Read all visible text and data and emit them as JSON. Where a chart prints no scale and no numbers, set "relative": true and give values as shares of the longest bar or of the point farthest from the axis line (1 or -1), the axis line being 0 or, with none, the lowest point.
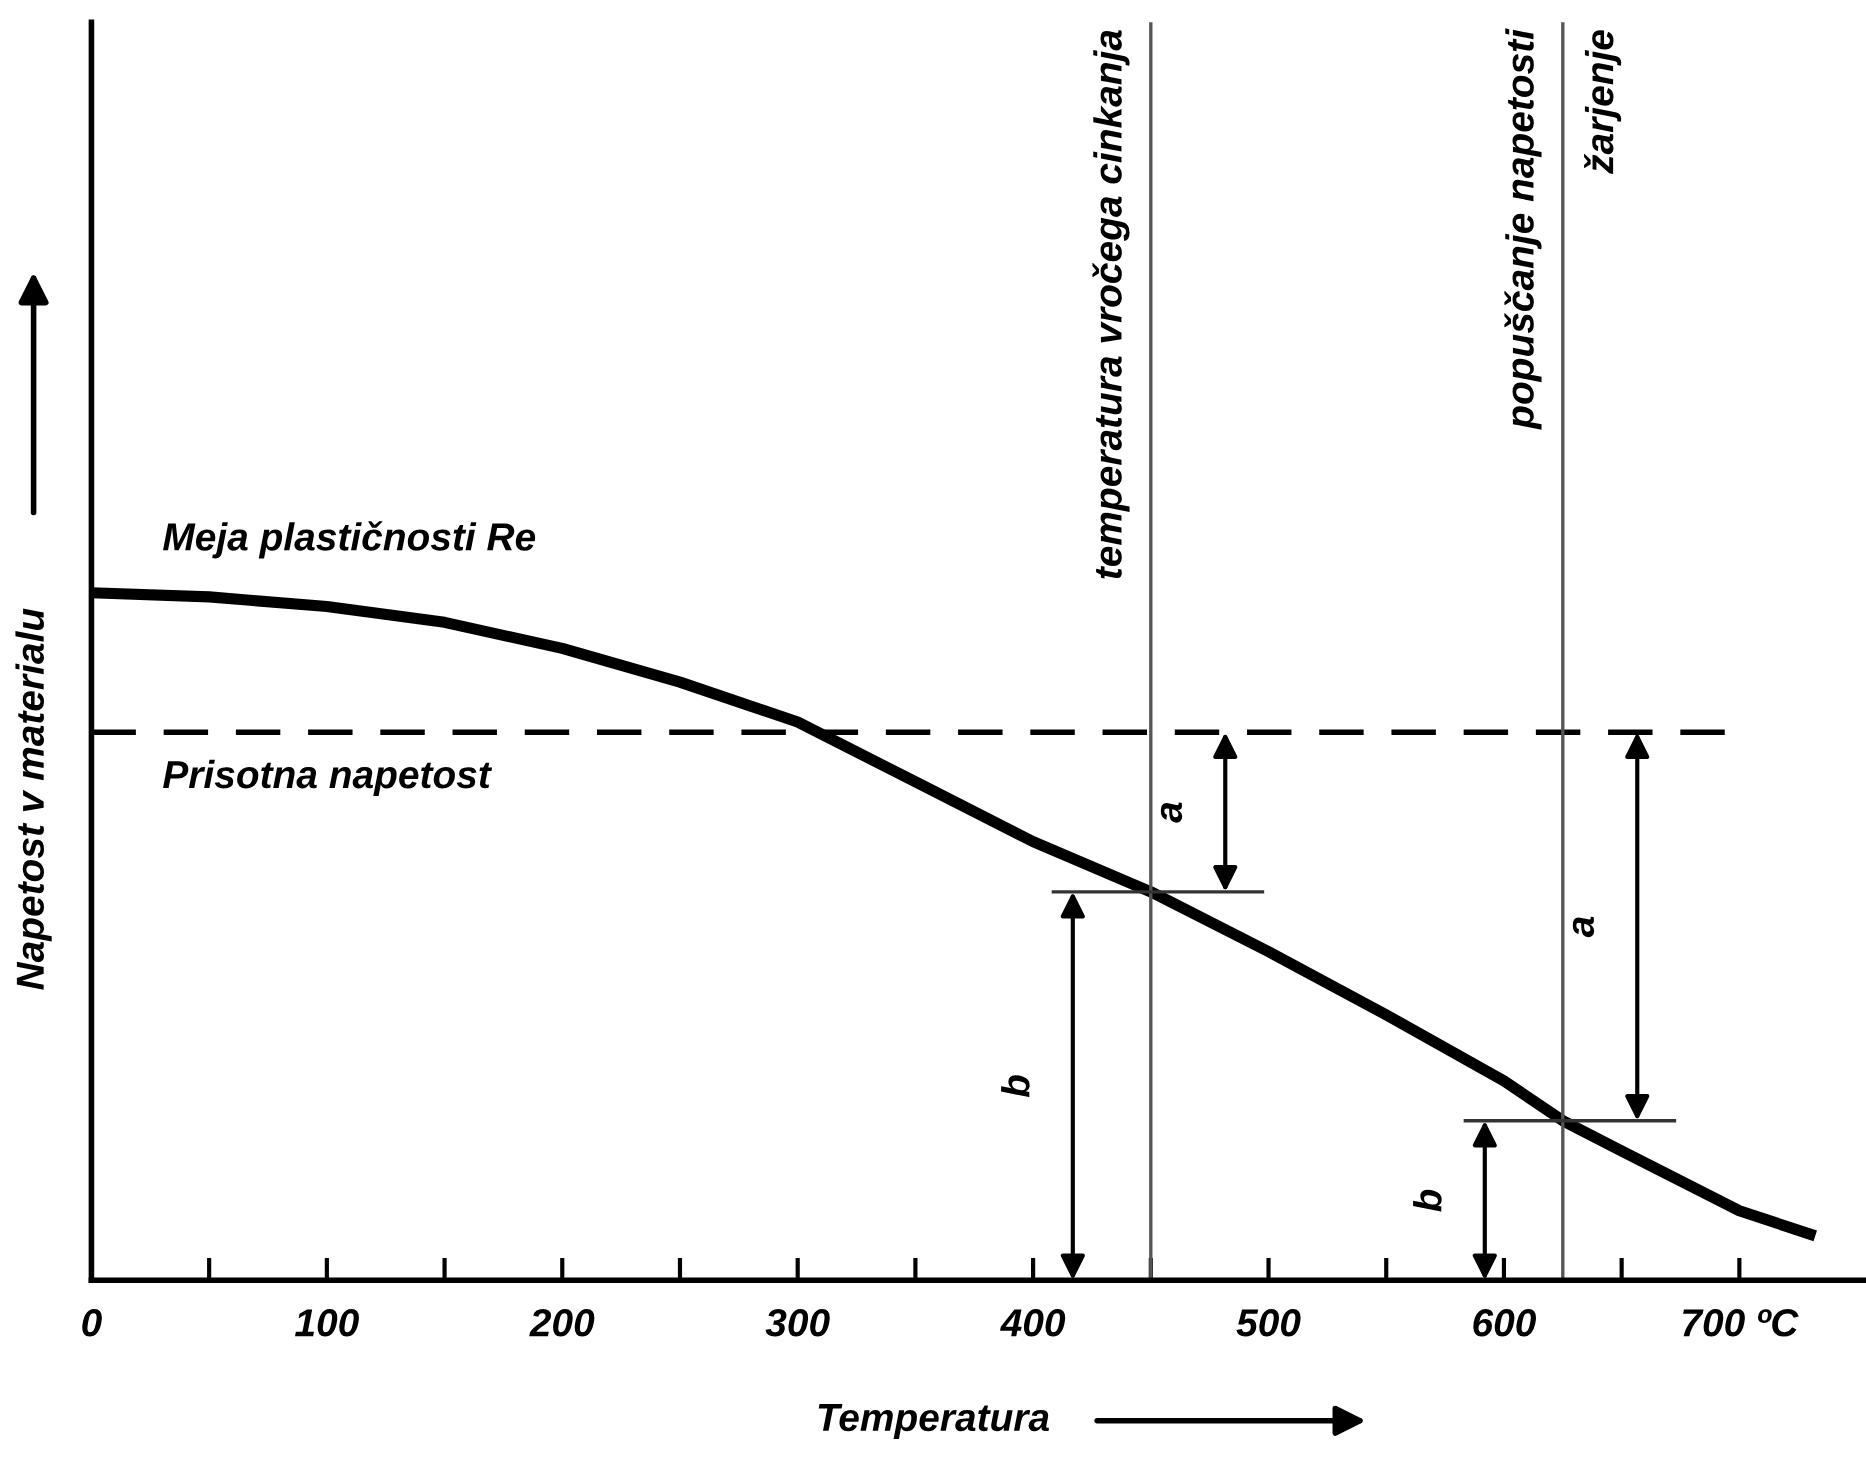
{
  "chart_data": {
    "type": "line",
    "relative": true,
    "tick_labels": "x",
    "xlabel": "Temperatura",
    "ylabel": "Napetost v materialu",
    "x": [
      0,
      50,
      100,
      150,
      200,
      250,
      300,
      350,
      400,
      450,
      500,
      550,
      600,
      625,
      650,
      700,
      730
    ],
    "series": [
      {
        "name": "Meja plastičnosti Re",
        "color": "#000000",
        "values": [
          1.0,
          0.994,
          0.98,
          0.957,
          0.919,
          0.87,
          0.812,
          0.725,
          0.638,
          0.565,
          0.478,
          0.386,
          0.29,
          0.232,
          0.188,
          0.101,
          0.067
        ]
      }
    ],
    "xlim": [
      0,
      753
    ],
    "xticks": [
      0,
      {
        "value": 50,
        "label": null
      },
      100,
      {
        "value": 150,
        "label": null
      },
      200,
      {
        "value": 250,
        "label": null
      },
      300,
      {
        "value": 350,
        "label": null
      },
      400,
      {
        "value": 450,
        "label": null
      },
      500,
      {
        "value": 550,
        "label": null
      },
      600,
      {
        "value": 650,
        "label": null
      },
      {
        "value": 700,
        "label": "700 ºC"
      }
    ],
    "ref_lines": [
      {
        "axis": "y",
        "value": 0.797,
        "label": "Prisotna napetost",
        "line_style": "dashed",
        "color": "#000000"
      },
      {
        "axis": "x",
        "value": 450,
        "label": "temperatura vročega cinkanja",
        "color": "#555555"
      },
      {
        "axis": "x",
        "value": 625,
        "label": "popuščanje napetosti",
        "color": "#555555"
      }
    ],
    "annotations": [
      "žarjenje",
      "a",
      "b",
      "a",
      "b"
    ],
    "grid": false,
    "legend": false,
    "marker": "none",
    "line_style": "solid"
  }
}
